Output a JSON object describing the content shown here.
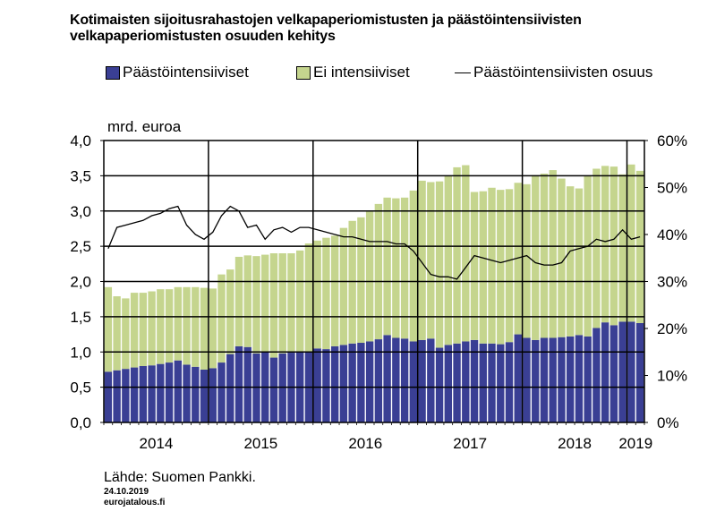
{
  "chart_data": {
    "type": "bar",
    "title": "Kotimaisten sijoitusrahastojen velkapaperiomistusten ja päästöintensiivisten velkapaperiomistusten osuuden kehitys",
    "ylabel": "mrd. euroa",
    "ylim": [
      0,
      4
    ],
    "y_ticks": [
      "0,0",
      "0,5",
      "1,0",
      "1,5",
      "2,0",
      "2,5",
      "3,0",
      "3,5",
      "4,0"
    ],
    "y2lim": [
      0,
      60
    ],
    "y2_ticks": [
      "0%",
      "10%",
      "20%",
      "30%",
      "40%",
      "50%",
      "60%"
    ],
    "x_labels": [
      "2014",
      "2015",
      "2016",
      "2017",
      "2018",
      "2019"
    ],
    "months_per_year": 12,
    "series": [
      {
        "name": "Päästöintensiiviset",
        "type": "bar",
        "color": "#3a3f94",
        "values": [
          0.72,
          0.74,
          0.76,
          0.78,
          0.8,
          0.81,
          0.83,
          0.85,
          0.88,
          0.82,
          0.79,
          0.75,
          0.77,
          0.85,
          0.97,
          1.08,
          1.07,
          0.98,
          1.0,
          0.92,
          0.98,
          0.99,
          1.0,
          1.01,
          1.05,
          1.04,
          1.08,
          1.1,
          1.12,
          1.13,
          1.15,
          1.18,
          1.24,
          1.2,
          1.19,
          1.15,
          1.17,
          1.19,
          1.06,
          1.1,
          1.12,
          1.15,
          1.17,
          1.12,
          1.12,
          1.11,
          1.14,
          1.25,
          1.2,
          1.17,
          1.2,
          1.2,
          1.21,
          1.22,
          1.24,
          1.22,
          1.34,
          1.42,
          1.38,
          1.43,
          1.43,
          1.41
        ]
      },
      {
        "name": "Ei intensiiviset",
        "type": "bar",
        "color": "#c5d58e",
        "values": [
          1.2,
          1.05,
          1.0,
          1.06,
          1.04,
          1.05,
          1.06,
          1.04,
          1.04,
          1.1,
          1.13,
          1.16,
          1.13,
          1.25,
          1.2,
          1.27,
          1.3,
          1.38,
          1.38,
          1.48,
          1.42,
          1.41,
          1.44,
          1.53,
          1.53,
          1.58,
          1.57,
          1.66,
          1.74,
          1.78,
          1.84,
          1.92,
          1.95,
          1.98,
          2.0,
          2.14,
          2.26,
          2.22,
          2.36,
          2.4,
          2.5,
          2.5,
          2.1,
          2.16,
          2.21,
          2.19,
          2.17,
          2.15,
          2.18,
          2.34,
          2.33,
          2.38,
          2.25,
          2.13,
          2.08,
          2.28,
          2.26,
          2.22,
          2.25,
          2.09,
          2.23,
          2.16
        ]
      },
      {
        "name": "Päästöintensiivisten osuus",
        "type": "line",
        "axis": "right",
        "color": "#000000",
        "values": [
          37.0,
          41.5,
          42.0,
          42.5,
          43.0,
          44.0,
          44.5,
          45.5,
          46.0,
          42.0,
          40.0,
          39.0,
          40.5,
          44.0,
          46.0,
          45.0,
          41.5,
          42.0,
          39.0,
          41.0,
          41.5,
          40.5,
          41.5,
          41.5,
          41.0,
          40.5,
          40.0,
          39.5,
          39.5,
          39.0,
          38.5,
          38.5,
          38.5,
          38.0,
          38.0,
          36.5,
          34.0,
          31.5,
          31.0,
          31.0,
          30.5,
          33.0,
          35.5,
          35.0,
          34.5,
          34.0,
          34.5,
          35.0,
          35.5,
          34.0,
          33.5,
          33.5,
          34.0,
          36.5,
          37.0,
          37.5,
          39.0,
          38.5,
          39.0,
          41.0,
          39.0,
          39.5
        ]
      }
    ]
  },
  "legend": {
    "item1": "Päästöintensiiviset",
    "item2": "Ei intensiiviset",
    "item3": "Päästöintensiivisten osuus"
  },
  "unit_label": "mrd. euroa",
  "source": "Lähde: Suomen Pankki.",
  "date": "24.10.2019",
  "site": "eurojatalous.fi"
}
